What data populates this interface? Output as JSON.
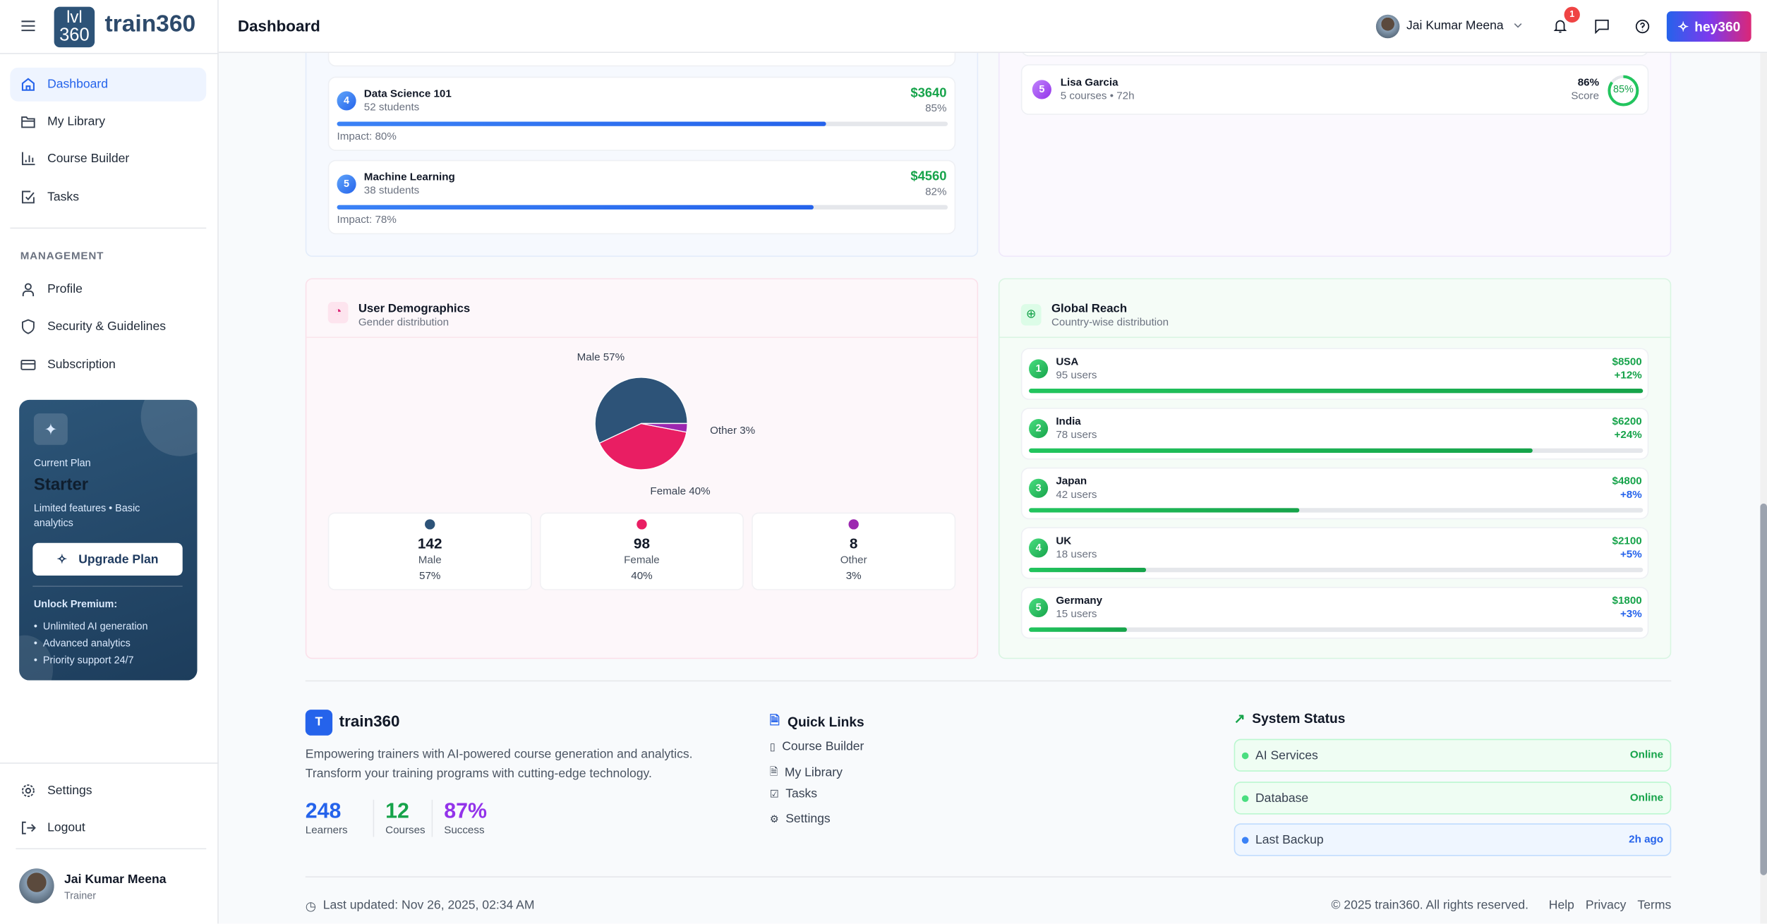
{
  "brand": {
    "logo_line1": "lvl",
    "logo_line2": "360",
    "name": "train360"
  },
  "header": {
    "title": "Dashboard",
    "user_name": "Jai Kumar Meena",
    "notification_count": "1",
    "ai_button": "hey360"
  },
  "sidebar": {
    "items": [
      {
        "label": "Dashboard",
        "active": true
      },
      {
        "label": "My Library"
      },
      {
        "label": "Course Builder"
      },
      {
        "label": "Tasks"
      }
    ],
    "section_label": "MANAGEMENT",
    "management": [
      {
        "label": "Profile"
      },
      {
        "label": "Security & Guidelines"
      },
      {
        "label": "Subscription"
      }
    ],
    "plan": {
      "caption": "Current Plan",
      "name": "Starter",
      "desc": "Limited features • Basic analytics",
      "button": "Upgrade Plan",
      "unlock_title": "Unlock Premium:",
      "features": [
        "Unlimited AI generation",
        "Advanced analytics",
        "Priority support 24/7"
      ]
    },
    "bottom": [
      {
        "label": "Settings"
      },
      {
        "label": "Logout"
      }
    ],
    "user": {
      "name": "Jai Kumar Meena",
      "role": "Trainer"
    }
  },
  "courses": [
    {
      "rank": "4",
      "name": "Data Science 101",
      "students": "52 students",
      "revenue": "$3640",
      "completion": "85%",
      "impact_label": "Impact: 80%",
      "impact": 80
    },
    {
      "rank": "5",
      "name": "Machine Learning",
      "students": "38 students",
      "revenue": "$4560",
      "completion": "82%",
      "impact_label": "Impact: 78%",
      "impact": 78
    }
  ],
  "learners": [
    {
      "rank": "5",
      "name": "Lisa Garcia",
      "meta": "5 courses • 72h",
      "score": "86%",
      "score_label": "Score",
      "ring": "85%",
      "ring_value": 85
    }
  ],
  "demographics": {
    "title": "User Demographics",
    "subtitle": "Gender distribution",
    "stats": [
      {
        "count": "142",
        "label": "Male",
        "pct": "57%",
        "color": "#2d5378"
      },
      {
        "count": "98",
        "label": "Female",
        "pct": "40%",
        "color": "#e91e63"
      },
      {
        "count": "8",
        "label": "Other",
        "pct": "3%",
        "color": "#9c27b0"
      }
    ]
  },
  "chart_data": {
    "type": "pie",
    "title": "Gender distribution",
    "categories": [
      "Male",
      "Female",
      "Other"
    ],
    "values": [
      57,
      40,
      3
    ],
    "labels": [
      "Male 57%",
      "Female 40%",
      "Other 3%"
    ],
    "colors": [
      "#2d5378",
      "#e91e63",
      "#9c27b0"
    ]
  },
  "global_reach": {
    "title": "Global Reach",
    "subtitle": "Country-wise distribution",
    "countries": [
      {
        "rank": "1",
        "name": "USA",
        "users": "95 users",
        "revenue": "$8500",
        "growth": "+12%",
        "growth_color": "#16a34a",
        "share": 100
      },
      {
        "rank": "2",
        "name": "India",
        "users": "78 users",
        "revenue": "$6200",
        "growth": "+24%",
        "growth_color": "#16a34a",
        "share": 82
      },
      {
        "rank": "3",
        "name": "Japan",
        "users": "42 users",
        "revenue": "$4800",
        "growth": "+8%",
        "growth_color": "#2563eb",
        "share": 44
      },
      {
        "rank": "4",
        "name": "UK",
        "users": "18 users",
        "revenue": "$2100",
        "growth": "+5%",
        "growth_color": "#2563eb",
        "share": 19
      },
      {
        "rank": "5",
        "name": "Germany",
        "users": "15 users",
        "revenue": "$1800",
        "growth": "+3%",
        "growth_color": "#2563eb",
        "share": 16
      }
    ]
  },
  "footer": {
    "logo_letter": "T",
    "brand": "train360",
    "tagline1": "Empowering trainers with AI-powered course generation and analytics.",
    "tagline2": "Transform your training programs with cutting-edge technology.",
    "stats": [
      {
        "value": "248",
        "label": "Learners",
        "color": "#2563eb"
      },
      {
        "value": "12",
        "label": "Courses",
        "color": "#16a34a"
      },
      {
        "value": "87%",
        "label": "Success",
        "color": "#9333ea"
      }
    ],
    "quick_links_title": "Quick Links",
    "quick_links": [
      "Course Builder",
      "My Library",
      "Tasks",
      "Settings"
    ],
    "status_title": "System Status",
    "status": [
      {
        "name": "AI Services",
        "value": "Online"
      },
      {
        "name": "Database",
        "value": "Online"
      },
      {
        "name": "Last Backup",
        "value": "2h ago"
      }
    ],
    "last_updated": "Last updated: Nov 26, 2025, 02:34 AM",
    "copyright": "© 2025 train360. All rights reserved.",
    "links": [
      "Help",
      "Privacy",
      "Terms"
    ]
  }
}
